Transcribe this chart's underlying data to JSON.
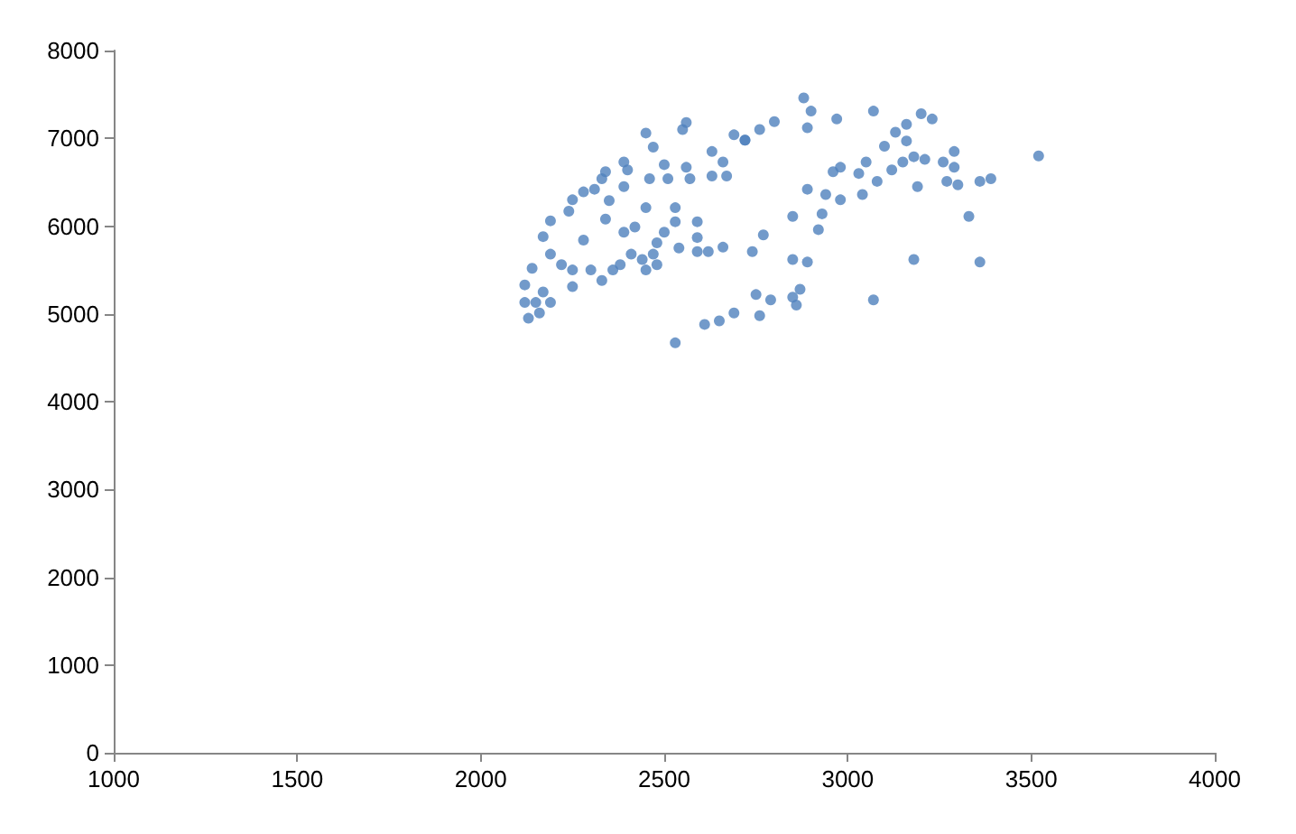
{
  "chart_data": {
    "type": "scatter",
    "marker": "circle",
    "grid": false,
    "xlim": [
      1000,
      4000
    ],
    "xticks": [
      1000,
      1500,
      2000,
      2500,
      3000,
      3500,
      4000
    ],
    "ylim": [
      0,
      8000
    ],
    "yticks": [
      0,
      1000,
      2000,
      3000,
      4000,
      5000,
      6000,
      7000,
      8000
    ],
    "series": [
      {
        "color": "#4f81bd",
        "x": [
          2130,
          2120,
          2120,
          2140,
          2170,
          2190,
          2190,
          2170,
          2190,
          2240,
          2250,
          2280,
          2310,
          2330,
          2340,
          2390,
          2400,
          2390,
          2340,
          2350,
          2280,
          2250,
          2250,
          2300,
          2330,
          2380,
          2390,
          2420,
          2410,
          2450,
          2480,
          2470,
          2500,
          2480,
          2530,
          2530,
          2540,
          2590,
          2590,
          2590,
          2620,
          2660,
          2450,
          2460,
          2500,
          2510,
          2560,
          2570,
          2630,
          2630,
          2660,
          2670,
          2470,
          2450,
          2550,
          2560,
          2690,
          2720,
          2530,
          2610,
          2650,
          2690,
          2160,
          2150,
          2220,
          2360,
          2440,
          2750,
          2760,
          2790,
          2850,
          2860,
          2870,
          2850,
          2890,
          2740,
          2770,
          2850,
          2920,
          2930,
          2890,
          2940,
          2980,
          2960,
          2980,
          3040,
          3030,
          3050,
          3080,
          3070,
          3100,
          3130,
          3160,
          3120,
          3150,
          3180,
          3210,
          3160,
          3200,
          3230,
          3190,
          3180,
          3260,
          3290,
          3290,
          3270,
          3300,
          3330,
          3360,
          3360,
          3390,
          2880,
          2900,
          2890,
          2970,
          3070,
          2800,
          2760,
          2720,
          3520
        ],
        "values": [
          4950,
          5130,
          5330,
          5520,
          5250,
          5130,
          5680,
          5880,
          6060,
          6170,
          6300,
          6390,
          6420,
          6540,
          6620,
          6730,
          6640,
          6450,
          6080,
          6290,
          5840,
          5500,
          5310,
          5500,
          5380,
          5560,
          5930,
          5990,
          5680,
          5500,
          5560,
          5680,
          5930,
          5810,
          6210,
          6050,
          5750,
          6050,
          5870,
          5710,
          5710,
          5760,
          6210,
          6540,
          6700,
          6540,
          6670,
          6540,
          6850,
          6570,
          6730,
          6570,
          6900,
          7060,
          7100,
          7180,
          7040,
          6980,
          4670,
          4880,
          4920,
          5010,
          5010,
          5130,
          5560,
          5500,
          5620,
          5220,
          4980,
          5160,
          5190,
          5100,
          5280,
          5620,
          5590,
          5710,
          5900,
          6110,
          5960,
          6140,
          6420,
          6360,
          6300,
          6620,
          6670,
          6360,
          6600,
          6730,
          6510,
          5160,
          6910,
          7070,
          7160,
          6640,
          6730,
          6790,
          6760,
          6970,
          7280,
          7220,
          6450,
          5620,
          6730,
          6850,
          6670,
          6510,
          6470,
          6110,
          5590,
          6510,
          6540,
          7460,
          7310,
          7120,
          7220,
          7310,
          7190,
          7100,
          6980,
          6800
        ]
      }
    ]
  }
}
